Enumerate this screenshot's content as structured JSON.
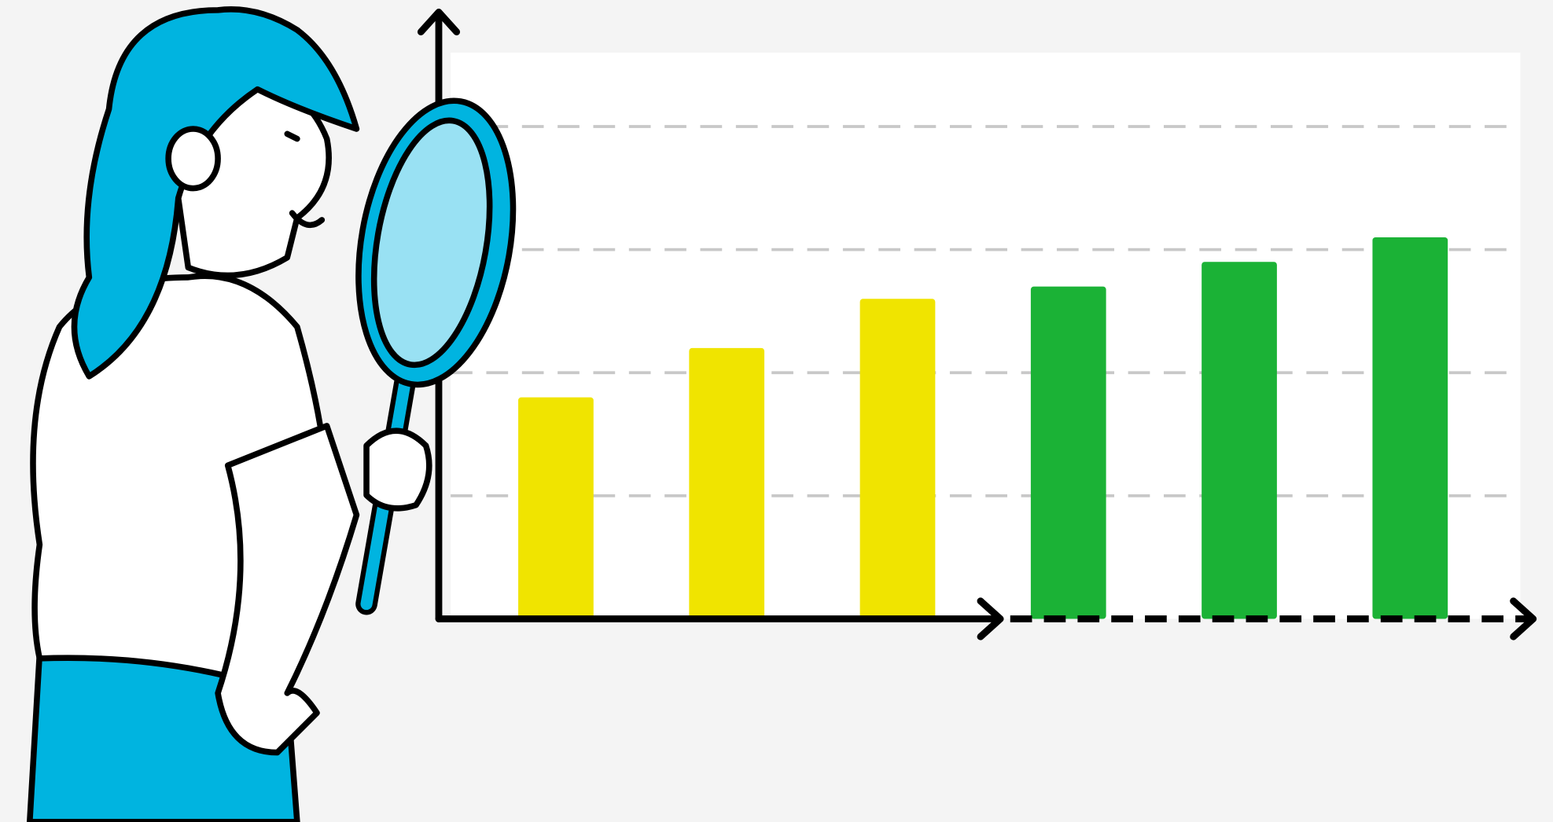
{
  "chart_data": {
    "type": "bar",
    "categories": [
      null,
      null,
      null,
      null,
      null,
      null
    ],
    "values": [
      1.8,
      2.2,
      2.6,
      2.7,
      2.9,
      3.1
    ],
    "colors": [
      "#f0e400",
      "#f0e400",
      "#f0e400",
      "#1bb236",
      "#1bb236",
      "#1bb236"
    ],
    "ylim": [
      0,
      4.6
    ],
    "grid_lines": [
      1,
      2,
      3,
      4
    ],
    "grid": true
  }
}
